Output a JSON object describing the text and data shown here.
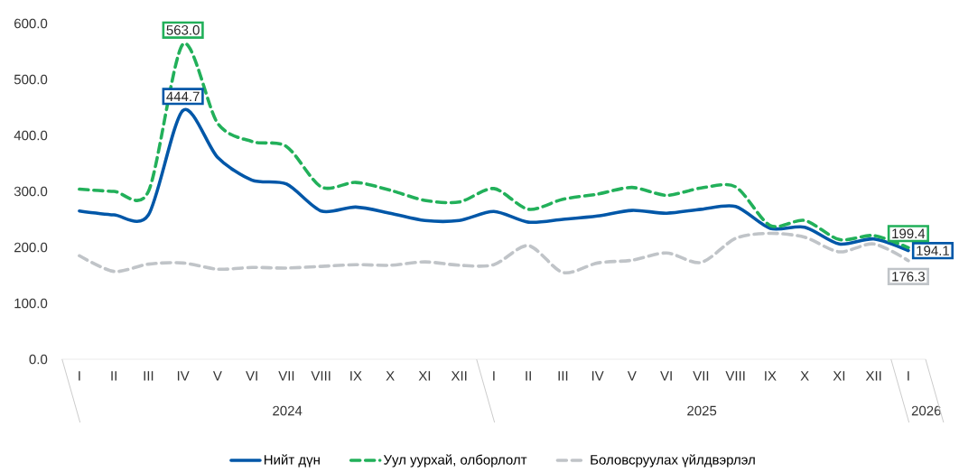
{
  "chart_data": {
    "type": "line",
    "categories": [
      "I",
      "II",
      "III",
      "IV",
      "V",
      "VI",
      "VII",
      "VIII",
      "IX",
      "X",
      "XI",
      "XII",
      "I",
      "II",
      "III",
      "IV",
      "V",
      "VI",
      "VII",
      "VIII",
      "IX",
      "X",
      "XI",
      "XII",
      "I"
    ],
    "annotations": [
      "2024",
      "2025",
      "2026"
    ],
    "ylim": [
      0,
      600
    ],
    "yticks": [
      {
        "value": 0,
        "label": "0.0"
      },
      {
        "value": 100,
        "label": "100.0"
      },
      {
        "value": 200,
        "label": "200.0"
      },
      {
        "value": 300,
        "label": "300.0"
      },
      {
        "value": 400,
        "label": "400.0"
      },
      {
        "value": 500,
        "label": "500.0"
      },
      {
        "value": 600,
        "label": "600.0"
      }
    ],
    "legend": "bottom",
    "series": [
      {
        "name": "Нийт дүн",
        "color": "#0057a8",
        "line_style": "solid",
        "values": [
          265,
          258,
          258,
          444.7,
          361,
          320,
          313,
          265,
          272,
          261,
          248,
          248,
          264,
          245,
          250,
          256,
          266,
          261,
          268,
          273,
          234,
          236,
          206,
          215,
          194.1
        ],
        "value_labels": [
          null,
          null,
          null,
          "444.7",
          null,
          null,
          null,
          null,
          null,
          null,
          null,
          null,
          null,
          null,
          null,
          null,
          null,
          null,
          null,
          null,
          null,
          null,
          null,
          null,
          "194.1"
        ]
      },
      {
        "name": "Уул уурхай, олборлолт",
        "color": "#22b05a",
        "line_style": "dashed",
        "values": [
          304,
          300,
          300,
          563.0,
          422,
          389,
          380,
          308,
          316,
          302,
          284,
          281,
          305,
          268,
          286,
          295,
          307,
          293,
          306,
          308,
          239,
          248,
          214,
          221,
          199.4
        ],
        "value_labels": [
          null,
          null,
          null,
          "563.0",
          null,
          null,
          null,
          null,
          null,
          null,
          null,
          null,
          null,
          null,
          null,
          null,
          null,
          null,
          null,
          null,
          null,
          null,
          null,
          null,
          "199.4"
        ]
      },
      {
        "name": "Боловсруулах үйлдвэрлэл",
        "color": "#c0c4c8",
        "line_style": "dashed",
        "values": [
          185,
          157,
          170,
          172,
          161,
          164,
          163,
          166,
          169,
          168,
          174,
          168,
          169,
          203,
          155,
          172,
          177,
          190,
          173,
          216,
          225,
          218,
          192,
          206,
          176.3
        ],
        "value_labels": [
          null,
          null,
          null,
          null,
          null,
          null,
          null,
          null,
          null,
          null,
          null,
          null,
          null,
          null,
          null,
          null,
          null,
          null,
          null,
          null,
          null,
          null,
          null,
          null,
          "176.3"
        ]
      }
    ]
  }
}
